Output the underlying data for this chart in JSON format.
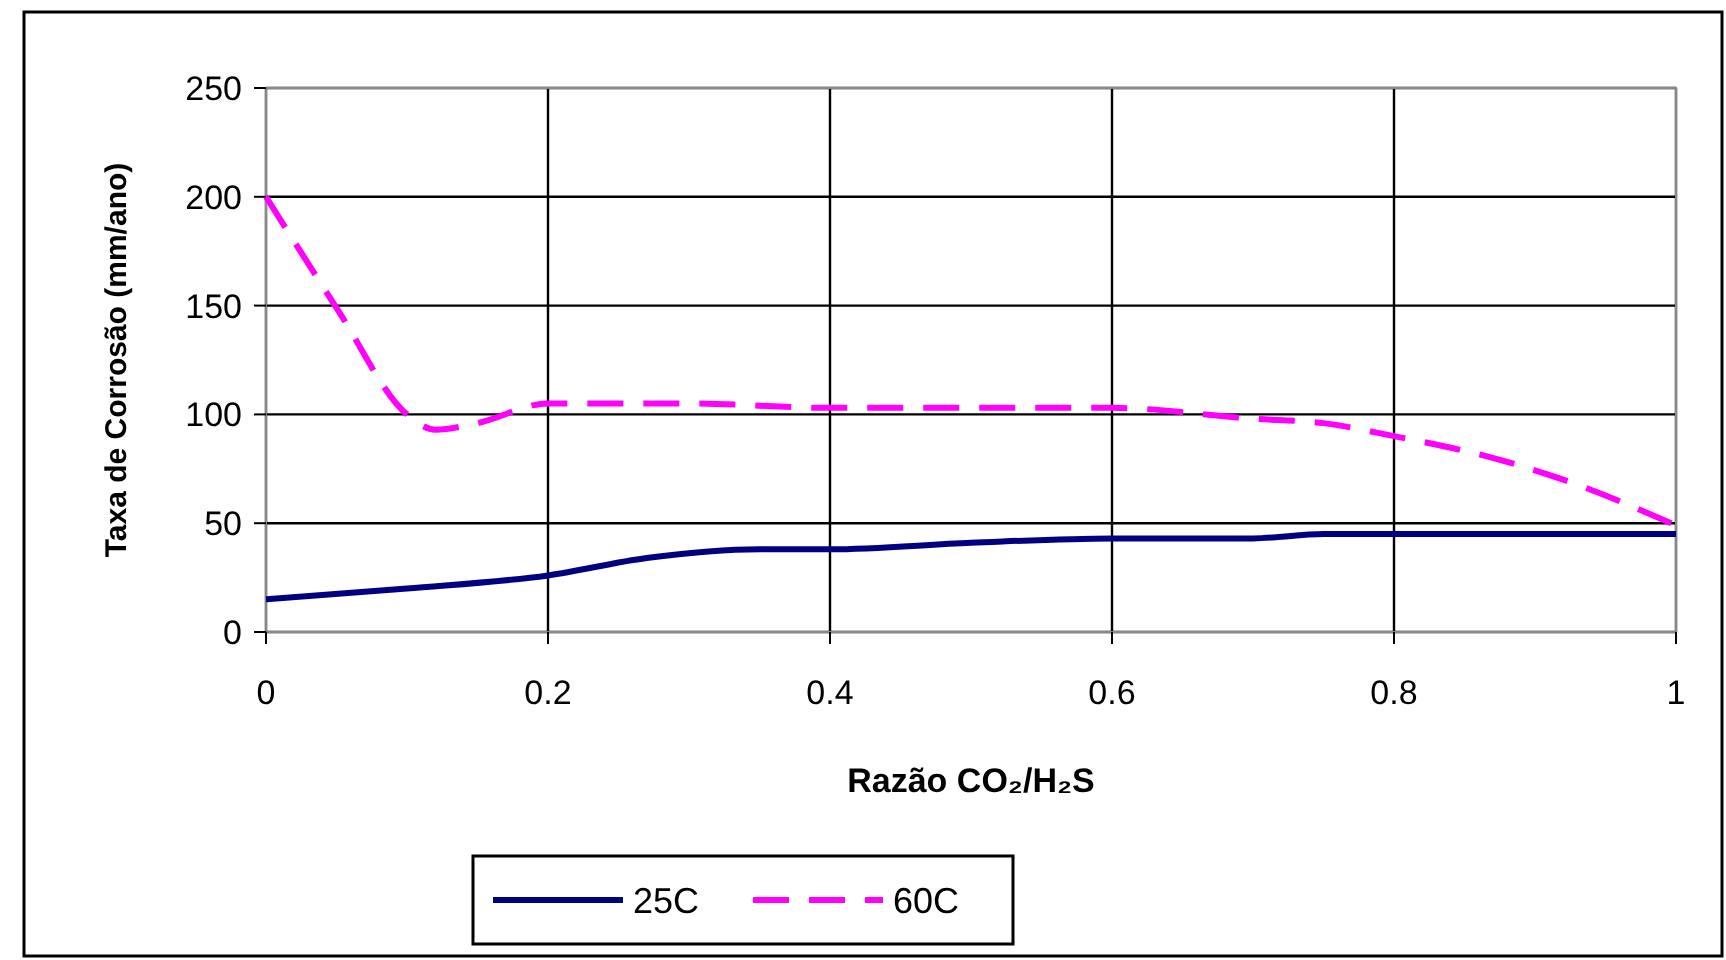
{
  "chart_data": {
    "type": "line",
    "xlabel": "Razão CO₂/H₂S",
    "ylabel": "Taxa de Corrosão (mm/ano)",
    "xlim": [
      0,
      1
    ],
    "xticks": [
      0,
      0.2,
      0.4,
      0.6,
      0.8,
      1
    ],
    "ylim": [
      0,
      250
    ],
    "yticks": [
      0,
      50,
      100,
      150,
      200,
      250
    ],
    "grid": true,
    "legend": "bottom",
    "series": [
      {
        "name": "25C",
        "color": "#000080",
        "line_style": "solid",
        "x": [
          0,
          0.1,
          0.2,
          0.27,
          0.35,
          0.4,
          0.5,
          0.6,
          0.7,
          0.75,
          0.8,
          1
        ],
        "values": [
          15,
          20,
          26,
          34,
          38,
          38,
          41,
          43,
          43,
          45,
          45,
          45
        ]
      },
      {
        "name": "60C",
        "color": "#ff00ff",
        "line_style": "dashed",
        "x": [
          0,
          0.05,
          0.1,
          0.12,
          0.15,
          0.2,
          0.3,
          0.4,
          0.5,
          0.6,
          0.7,
          0.75,
          0.8,
          0.87,
          0.92,
          1
        ],
        "values": [
          200,
          149,
          100,
          93,
          96,
          105,
          105,
          103,
          103,
          103,
          98,
          96,
          90,
          80,
          70,
          49
        ]
      }
    ]
  }
}
